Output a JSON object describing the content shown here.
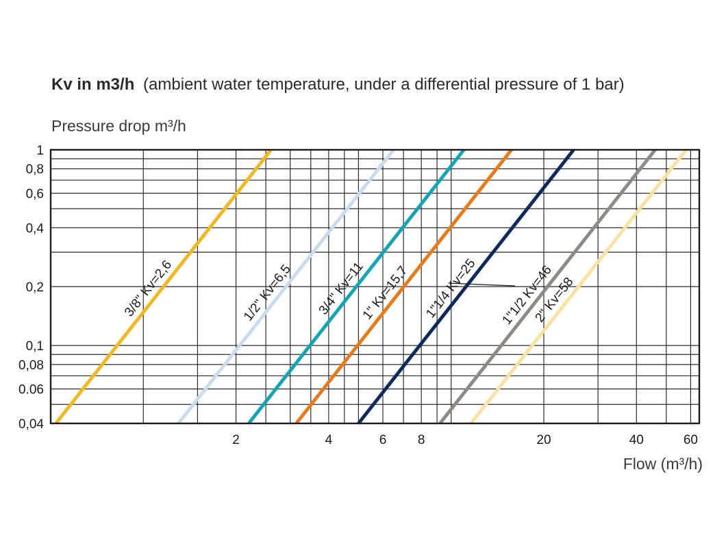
{
  "chart_data": {
    "type": "line",
    "title_bold": "Kv in m3/h",
    "title_rest": "(ambient water temperature, under a differential pressure of 1 bar)",
    "ylabel": "Pressure drop m³/h",
    "xlabel": "Flow (m³/h)",
    "x_scale": "log",
    "y_scale": "log",
    "xlim": [
      0.5,
      64
    ],
    "ylim": [
      0.04,
      1
    ],
    "grid": true,
    "y_ticks": [
      {
        "value": 1,
        "label": "1"
      },
      {
        "value": 0.8,
        "label": "0,8"
      },
      {
        "value": 0.6,
        "label": "0,6"
      },
      {
        "value": 0.4,
        "label": "0,4"
      },
      {
        "value": 0.2,
        "label": "0,2"
      },
      {
        "value": 0.1,
        "label": "0,1"
      },
      {
        "value": 0.08,
        "label": "0,08"
      },
      {
        "value": 0.06,
        "label": "0.06"
      },
      {
        "value": 0.04,
        "label": "0,04"
      }
    ],
    "x_ticks": [
      {
        "value": 2,
        "label": "2"
      },
      {
        "value": 4,
        "label": "4"
      },
      {
        "value": 6,
        "label": "6"
      },
      {
        "value": 8,
        "label": "8"
      },
      {
        "value": 20,
        "label": "20"
      },
      {
        "value": 40,
        "label": "40"
      },
      {
        "value": 60,
        "label": "60"
      }
    ],
    "series": [
      {
        "name": "3/8\" Kv=2,6",
        "kv": 2.6,
        "color": "#f2b81f",
        "x_range": [
          0.52,
          2.6
        ],
        "label_at": 0.2
      },
      {
        "name": "1/2\" Kv=6,5",
        "kv": 6.5,
        "color": "#c9dcef",
        "x_range": [
          1.3,
          6.5
        ],
        "label_at": 0.19
      },
      {
        "name": "3/4\" Kv=11",
        "kv": 11,
        "color": "#12a5b8",
        "x_range": [
          2.2,
          11
        ],
        "label_at": 0.2
      },
      {
        "name": "1\" Kv=15,7",
        "kv": 15.7,
        "color": "#ea7a17",
        "x_range": [
          3.14,
          15.7
        ],
        "label_at": 0.19
      },
      {
        "name": "1\"1/4 Kv=25",
        "kv": 25,
        "color": "#0c2a5e",
        "x_range": [
          5.0,
          25
        ],
        "label_at": 0.2
      },
      {
        "name": "1\"1/2 Kv=46",
        "kv": 46,
        "color": "#8f8a83",
        "x_range": [
          9.2,
          46
        ],
        "label_at": 0.185
      },
      {
        "name": "2\" Kv=58",
        "kv": 58,
        "color": "#fbe0a0",
        "x_range": [
          11.6,
          58
        ],
        "label_at": 0.175
      }
    ]
  }
}
